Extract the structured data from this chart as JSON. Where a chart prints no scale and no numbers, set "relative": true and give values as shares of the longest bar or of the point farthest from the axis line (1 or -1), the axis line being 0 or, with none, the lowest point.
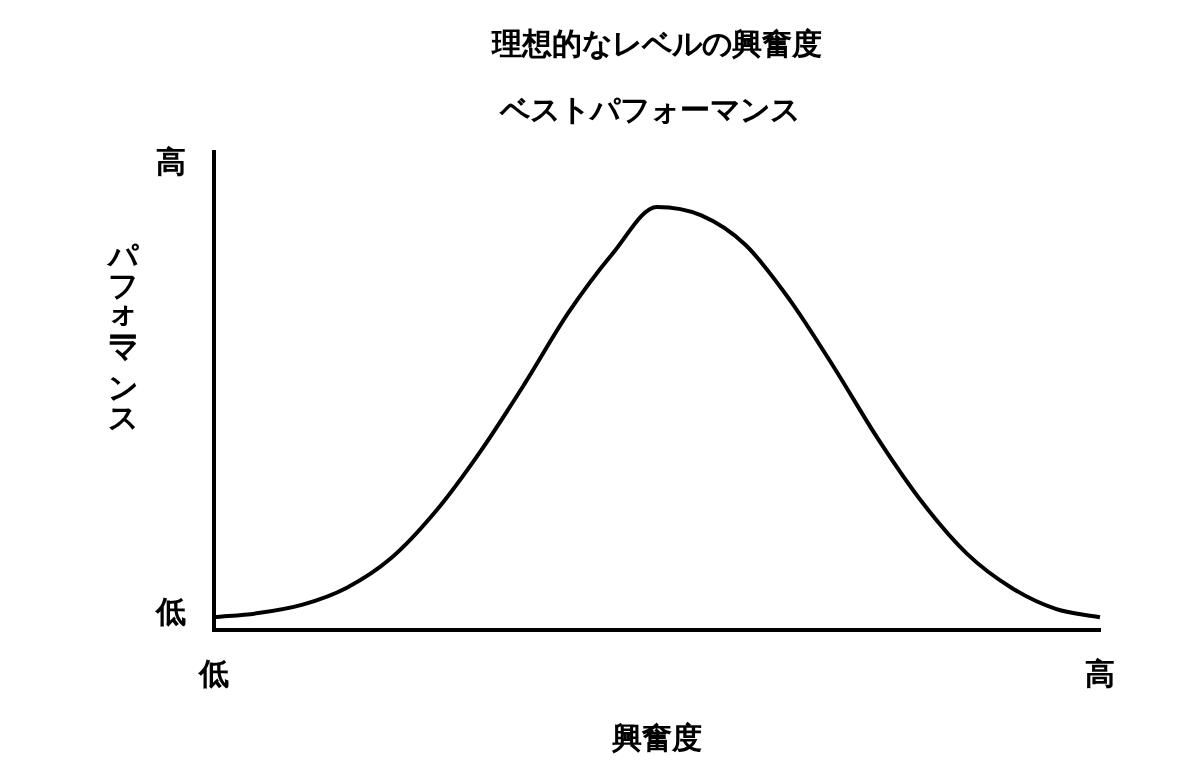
{
  "chart_data": {
    "type": "line",
    "title": "理想的なレベルの興奮度",
    "xlabel": "興奮度",
    "ylabel": "パフォーマンス",
    "relative": true,
    "color": "#000000",
    "grid": false,
    "legend": false,
    "marker": "none",
    "line_style": "solid",
    "categories": [
      "低",
      null,
      null,
      null,
      null,
      null,
      null,
      null,
      null,
      null,
      null,
      null,
      null,
      null,
      null,
      null,
      null,
      null,
      null,
      null,
      "高"
    ],
    "values": [
      0.03,
      0.04,
      0.06,
      0.1,
      0.17,
      0.28,
      0.42,
      0.58,
      0.75,
      0.89,
      1,
      0.98,
      0.91,
      0.78,
      0.62,
      0.45,
      0.3,
      0.18,
      0.1,
      0.05,
      0.03
    ],
    "annotations": [
      "ベストパフォーマンス",
      "高",
      "低"
    ]
  }
}
